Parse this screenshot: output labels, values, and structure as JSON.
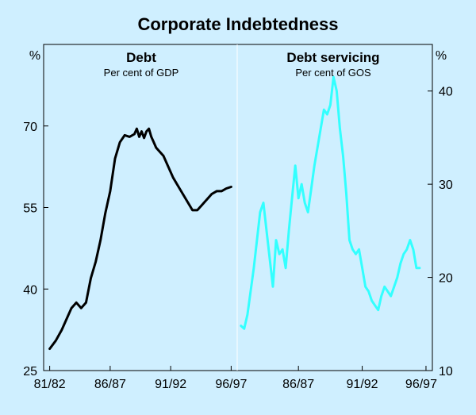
{
  "chart_data": {
    "type": "line",
    "title": "Corporate Indebtedness",
    "x_tick_labels": [
      "81/82",
      "86/87",
      "91/92",
      "96/97"
    ],
    "panels": [
      {
        "id": "left",
        "title": "Debt",
        "subtitle": "Per cent of GDP",
        "unit": "%",
        "ylim": [
          25,
          85
        ],
        "yticks": [
          25,
          40,
          55,
          70
        ],
        "xlim": [
          1981.5,
          1997.5
        ],
        "xticks": [
          1982,
          1987,
          1992,
          1997
        ],
        "series": [
          {
            "name": "Debt (per cent of GDP)",
            "color": "#000000",
            "x": [
              1982.0,
              1982.5,
              1983.0,
              1983.5,
              1983.8,
              1984.2,
              1984.6,
              1985.0,
              1985.4,
              1985.8,
              1986.2,
              1986.6,
              1987.0,
              1987.4,
              1987.8,
              1988.2,
              1988.6,
              1989.0,
              1989.2,
              1989.4,
              1989.6,
              1989.8,
              1990.0,
              1990.2,
              1990.4,
              1990.6,
              1990.8,
              1991.0,
              1991.4,
              1991.8,
              1992.2,
              1992.6,
              1993.0,
              1993.4,
              1993.8,
              1994.2,
              1994.6,
              1995.0,
              1995.4,
              1995.8,
              1996.2,
              1996.6,
              1997.0
            ],
            "values": [
              29.0,
              30.5,
              32.5,
              35.0,
              36.5,
              37.5,
              36.5,
              37.5,
              42.0,
              45.0,
              49.0,
              54.0,
              58.0,
              64.0,
              67.0,
              68.3,
              68.0,
              68.5,
              69.5,
              68.0,
              69.0,
              67.8,
              69.0,
              69.5,
              68.0,
              67.0,
              66.0,
              65.5,
              64.5,
              62.5,
              60.5,
              59.0,
              57.5,
              56.0,
              54.5,
              54.5,
              55.5,
              56.5,
              57.5,
              58.0,
              58.0,
              58.5,
              58.8
            ]
          }
        ]
      },
      {
        "id": "right",
        "title": "Debt servicing",
        "subtitle": "Per cent of GOS",
        "unit": "%",
        "ylim": [
          10,
          45
        ],
        "yticks": [
          10,
          20,
          30,
          40
        ],
        "xlim": [
          1982.2,
          1997.5
        ],
        "xticks": [
          1987,
          1992,
          1997
        ],
        "series": [
          {
            "name": "Debt servicing (per cent of GOS)",
            "color": "#33ffff",
            "x": [
              1982.5,
              1982.75,
              1983.0,
              1983.25,
              1983.5,
              1983.75,
              1984.0,
              1984.25,
              1984.5,
              1984.75,
              1985.0,
              1985.25,
              1985.5,
              1985.75,
              1986.0,
              1986.25,
              1986.5,
              1986.75,
              1987.0,
              1987.25,
              1987.5,
              1987.75,
              1988.0,
              1988.25,
              1988.5,
              1988.75,
              1989.0,
              1989.25,
              1989.5,
              1989.75,
              1990.0,
              1990.25,
              1990.5,
              1990.75,
              1991.0,
              1991.25,
              1991.5,
              1991.75,
              1992.0,
              1992.25,
              1992.5,
              1992.75,
              1993.0,
              1993.25,
              1993.5,
              1993.75,
              1994.0,
              1994.25,
              1994.5,
              1994.75,
              1995.0,
              1995.25,
              1995.5,
              1995.75,
              1996.0,
              1996.25,
              1996.5
            ],
            "values": [
              14.8,
              14.5,
              16.0,
              18.5,
              21.0,
              24.0,
              27.0,
              28.0,
              25.0,
              22.0,
              19.0,
              24.0,
              22.5,
              23.0,
              21.0,
              25.0,
              28.5,
              32.0,
              28.5,
              30.0,
              28.0,
              27.0,
              29.5,
              32.0,
              34.0,
              36.0,
              38.0,
              37.5,
              38.5,
              41.5,
              40.0,
              36.0,
              33.0,
              29.0,
              24.0,
              23.0,
              22.5,
              23.0,
              21.0,
              19.0,
              18.5,
              17.5,
              17.0,
              16.5,
              18.0,
              19.0,
              18.5,
              18.0,
              19.0,
              20.0,
              21.5,
              22.5,
              23.0,
              24.0,
              23.0,
              21.0,
              21.0
            ]
          }
        ]
      }
    ]
  }
}
